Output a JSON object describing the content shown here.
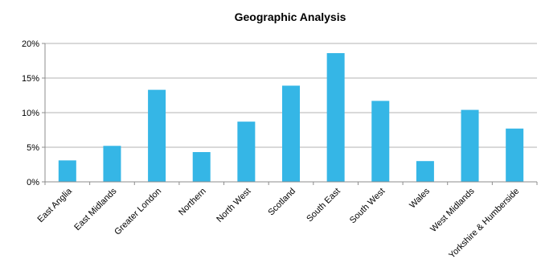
{
  "chart_data": {
    "type": "bar",
    "title": "Geographic Analysis",
    "xlabel": "",
    "ylabel": "",
    "categories": [
      "East Anglia",
      "East Midlands",
      "Greater London",
      "Northern",
      "North West",
      "Scotland",
      "South East",
      "South West",
      "Wales",
      "West Midlands",
      "Yorkshire & Humberside"
    ],
    "values": [
      3.1,
      5.2,
      13.3,
      4.3,
      8.7,
      13.9,
      18.6,
      11.7,
      3.0,
      10.4,
      7.7
    ],
    "ylim": [
      0,
      20
    ],
    "yticks": [
      0,
      5,
      10,
      15,
      20
    ],
    "ytick_labels": [
      "0%",
      "5%",
      "10%",
      "15%",
      "20%"
    ],
    "grid": true,
    "legend": "none",
    "colors": {
      "bar": "#35b6e6",
      "grid": "#b3b3b3",
      "axis": "#8c8c8c",
      "text": "#000000"
    }
  }
}
